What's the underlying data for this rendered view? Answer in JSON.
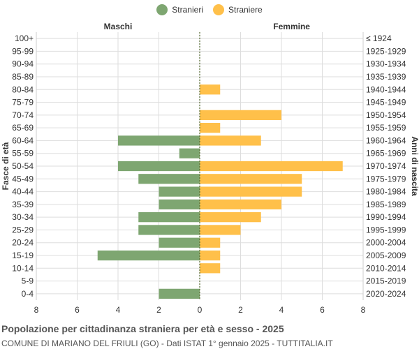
{
  "legend": {
    "male_label": "Stranieri",
    "female_label": "Straniere"
  },
  "colors": {
    "male": "#7ea671",
    "female": "#ffc04a",
    "grid": "#dddddd",
    "centerline": "#556b2f"
  },
  "chart_data": {
    "type": "bar",
    "orientation": "horizontal-population-pyramid",
    "left_header": "Maschi",
    "right_header": "Femmine",
    "ylabel_left": "Fasce di età",
    "ylabel_right": "Anni di nascita",
    "xlim": [
      -8,
      8
    ],
    "x_ticks": [
      -8,
      -6,
      -4,
      -2,
      0,
      2,
      4,
      6,
      8
    ],
    "x_tick_labels": [
      "8",
      "6",
      "4",
      "2",
      "0",
      "2",
      "4",
      "6",
      "8"
    ],
    "grid": true,
    "categories": [
      "100+",
      "95-99",
      "90-94",
      "85-89",
      "80-84",
      "75-79",
      "70-74",
      "65-69",
      "60-64",
      "55-59",
      "50-54",
      "45-49",
      "40-44",
      "35-39",
      "30-34",
      "25-29",
      "20-24",
      "15-19",
      "10-14",
      "5-9",
      "0-4"
    ],
    "birth_years": [
      "≤ 1924",
      "1925-1929",
      "1930-1934",
      "1935-1939",
      "1940-1944",
      "1945-1949",
      "1950-1954",
      "1955-1959",
      "1960-1964",
      "1965-1969",
      "1970-1974",
      "1975-1979",
      "1980-1984",
      "1985-1989",
      "1990-1994",
      "1995-1999",
      "2000-2004",
      "2005-2009",
      "2010-2014",
      "2015-2019",
      "2020-2024"
    ],
    "series": [
      {
        "name": "Stranieri",
        "values": [
          0,
          0,
          0,
          0,
          0,
          0,
          0,
          0,
          4,
          1,
          4,
          3,
          2,
          2,
          3,
          3,
          2,
          5,
          0,
          0,
          2
        ]
      },
      {
        "name": "Straniere",
        "values": [
          0,
          0,
          0,
          0,
          1,
          0,
          4,
          1,
          3,
          0,
          7,
          5,
          5,
          4,
          3,
          2,
          1,
          1,
          1,
          0,
          0
        ]
      }
    ]
  },
  "footer": {
    "title": "Popolazione per cittadinanza straniera per età e sesso - 2025",
    "subtitle": "COMUNE DI MARIANO DEL FRIULI (GO) - Dati ISTAT 1° gennaio 2025 - TUTTITALIA.IT"
  }
}
